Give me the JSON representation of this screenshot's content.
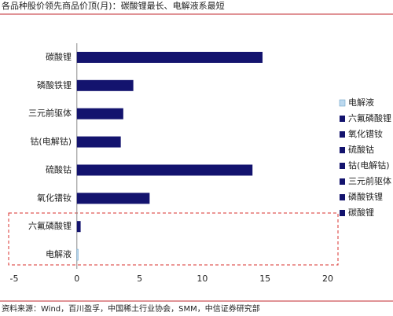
{
  "chart_data": {
    "type": "bar",
    "orientation": "horizontal",
    "title": "各品种股价领先商品价顶(月)：碳酸锂最长、电解液系最短",
    "source": "资料来源：Wind，百川盈孚，中国稀土行业协会，SMM，中信证券研究部",
    "categories": [
      "碳酸锂",
      "磷酸铁锂",
      "三元前驱体",
      "钴(电解钴)",
      "硫酸钴",
      "氧化镨钕",
      "六氟磷酸锂",
      "电解液"
    ],
    "values": [
      14.8,
      4.5,
      3.7,
      3.5,
      14.0,
      5.8,
      0.3,
      0.1
    ],
    "colors": [
      "#13136e",
      "#13136e",
      "#13136e",
      "#13136e",
      "#13136e",
      "#13136e",
      "#13136e",
      "#bcd9ef"
    ],
    "xlim": [
      -5,
      20
    ],
    "xticks": [
      -5,
      0,
      5,
      10,
      15,
      20
    ],
    "legend": "right"
  }
}
